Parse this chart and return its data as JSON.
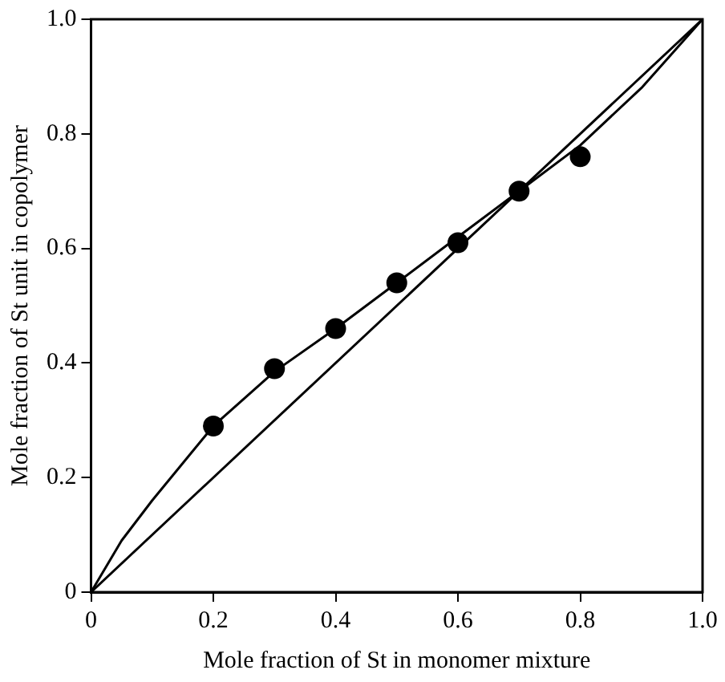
{
  "chart_data": {
    "type": "scatter",
    "xlabel": "Mole fraction of St in monomer mixture",
    "ylabel": "Mole fraction of St unit in copolymer",
    "x": [
      0.2,
      0.3,
      0.4,
      0.5,
      0.6,
      0.7,
      0.8
    ],
    "series": [
      {
        "marker": "circle",
        "color": "#000000",
        "values": [
          0.29,
          0.39,
          0.46,
          0.54,
          0.61,
          0.7,
          0.76
        ]
      },
      {
        "type": "line",
        "marker": "none",
        "color": "#000000",
        "x": [
          0,
          0.05,
          0.1,
          0.2,
          0.3,
          0.4,
          0.5,
          0.6,
          0.7,
          0.8,
          0.9,
          1
        ],
        "values": [
          0,
          0.09,
          0.16,
          0.29,
          0.385,
          0.46,
          0.54,
          0.62,
          0.7,
          0.78,
          0.88,
          1
        ]
      },
      {
        "type": "line",
        "marker": "none",
        "color": "#000000",
        "x": [
          0,
          1
        ],
        "values": [
          0,
          1
        ]
      }
    ],
    "xlim": [
      0,
      1
    ],
    "ylim": [
      0,
      1
    ],
    "xticks": [
      0,
      0.2,
      0.4,
      0.6,
      0.8,
      {
        "value": 1,
        "label": "1.0"
      }
    ],
    "yticks": [
      0,
      0.2,
      0.4,
      0.6,
      0.8,
      {
        "value": 1,
        "label": "1.0"
      }
    ],
    "grid": false,
    "legend": false,
    "line_style": "solid"
  }
}
